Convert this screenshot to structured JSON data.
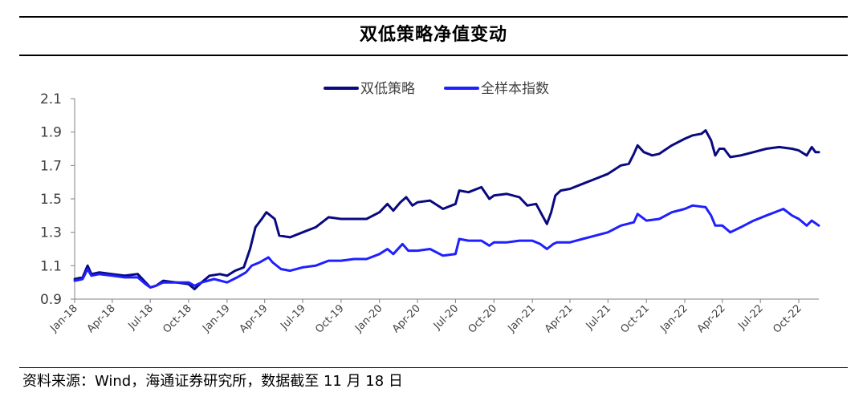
{
  "header": {
    "title": "双低策略净值变动"
  },
  "footer": {
    "source": "资料来源：Wind，海通证券研究所，数据截至 11 月 18 日"
  },
  "colors": {
    "strategy": "#0a0a80",
    "index": "#1f1fff",
    "axis": "#808080",
    "text": "#404040"
  },
  "chart_data": {
    "type": "line",
    "title": "双低策略净值变动",
    "xlabel": "",
    "ylabel": "",
    "ylim": [
      0.9,
      2.1
    ],
    "yticks": [
      0.9,
      1.1,
      1.3,
      1.5,
      1.7,
      1.9,
      2.1
    ],
    "ytick_labels": [
      "0.9",
      "1.1",
      "1.3",
      "1.5",
      "1.7",
      "1.9",
      "2.1"
    ],
    "xlim": [
      "2018-01-01",
      "2022-11-18"
    ],
    "xticks": [
      "2018-01-01",
      "2018-04-01",
      "2018-07-01",
      "2018-10-01",
      "2019-01-01",
      "2019-04-01",
      "2019-07-01",
      "2019-10-01",
      "2020-01-01",
      "2020-04-01",
      "2020-07-01",
      "2020-10-01",
      "2021-01-01",
      "2021-04-01",
      "2021-07-01",
      "2021-10-01",
      "2022-01-01",
      "2022-04-01",
      "2022-07-01",
      "2022-10-01"
    ],
    "xtick_labels": [
      "Jan-18",
      "Apr-18",
      "Jul-18",
      "Oct-18",
      "Jan-19",
      "Apr-19",
      "Jul-19",
      "Oct-19",
      "Jan-20",
      "Apr-20",
      "Jul-20",
      "Oct-20",
      "Jan-21",
      "Apr-21",
      "Jul-21",
      "Oct-21",
      "Jan-22",
      "Apr-22",
      "Jul-22",
      "Oct-22"
    ],
    "legend_position": "top-center",
    "grid": false,
    "series": [
      {
        "name": "双低策略",
        "color": "#0a0a80",
        "points": [
          [
            "2018-01-01",
            1.02
          ],
          [
            "2018-01-20",
            1.03
          ],
          [
            "2018-02-01",
            1.1
          ],
          [
            "2018-02-10",
            1.05
          ],
          [
            "2018-03-01",
            1.06
          ],
          [
            "2018-04-01",
            1.05
          ],
          [
            "2018-05-01",
            1.04
          ],
          [
            "2018-06-01",
            1.05
          ],
          [
            "2018-06-20",
            1.0
          ],
          [
            "2018-07-01",
            0.97
          ],
          [
            "2018-07-15",
            0.98
          ],
          [
            "2018-08-01",
            1.01
          ],
          [
            "2018-09-01",
            1.0
          ],
          [
            "2018-10-01",
            0.99
          ],
          [
            "2018-10-15",
            0.96
          ],
          [
            "2018-11-01",
            1.0
          ],
          [
            "2018-11-20",
            1.04
          ],
          [
            "2018-12-15",
            1.05
          ],
          [
            "2019-01-01",
            1.04
          ],
          [
            "2019-01-20",
            1.07
          ],
          [
            "2019-02-10",
            1.09
          ],
          [
            "2019-02-25",
            1.2
          ],
          [
            "2019-03-10",
            1.33
          ],
          [
            "2019-03-25",
            1.38
          ],
          [
            "2019-04-05",
            1.42
          ],
          [
            "2019-04-15",
            1.4
          ],
          [
            "2019-04-25",
            1.38
          ],
          [
            "2019-05-06",
            1.28
          ],
          [
            "2019-06-01",
            1.27
          ],
          [
            "2019-07-01",
            1.3
          ],
          [
            "2019-08-01",
            1.33
          ],
          [
            "2019-09-01",
            1.39
          ],
          [
            "2019-10-01",
            1.38
          ],
          [
            "2019-11-01",
            1.38
          ],
          [
            "2019-12-01",
            1.38
          ],
          [
            "2020-01-01",
            1.42
          ],
          [
            "2020-01-20",
            1.47
          ],
          [
            "2020-02-03",
            1.43
          ],
          [
            "2020-02-20",
            1.48
          ],
          [
            "2020-03-05",
            1.51
          ],
          [
            "2020-03-20",
            1.46
          ],
          [
            "2020-04-01",
            1.48
          ],
          [
            "2020-05-01",
            1.49
          ],
          [
            "2020-06-01",
            1.44
          ],
          [
            "2020-07-01",
            1.47
          ],
          [
            "2020-07-10",
            1.55
          ],
          [
            "2020-08-01",
            1.54
          ],
          [
            "2020-09-01",
            1.57
          ],
          [
            "2020-09-20",
            1.5
          ],
          [
            "2020-10-01",
            1.52
          ],
          [
            "2020-11-01",
            1.53
          ],
          [
            "2020-12-01",
            1.51
          ],
          [
            "2020-12-20",
            1.46
          ],
          [
            "2021-01-10",
            1.47
          ],
          [
            "2021-01-25",
            1.4
          ],
          [
            "2021-02-05",
            1.35
          ],
          [
            "2021-02-15",
            1.42
          ],
          [
            "2021-02-25",
            1.52
          ],
          [
            "2021-03-10",
            1.55
          ],
          [
            "2021-04-01",
            1.56
          ],
          [
            "2021-05-01",
            1.59
          ],
          [
            "2021-06-01",
            1.62
          ],
          [
            "2021-07-01",
            1.65
          ],
          [
            "2021-08-01",
            1.7
          ],
          [
            "2021-08-20",
            1.71
          ],
          [
            "2021-09-01",
            1.77
          ],
          [
            "2021-09-10",
            1.82
          ],
          [
            "2021-09-25",
            1.78
          ],
          [
            "2021-10-15",
            1.76
          ],
          [
            "2021-11-01",
            1.77
          ],
          [
            "2021-12-01",
            1.82
          ],
          [
            "2022-01-01",
            1.86
          ],
          [
            "2022-01-20",
            1.88
          ],
          [
            "2022-02-10",
            1.89
          ],
          [
            "2022-02-20",
            1.91
          ],
          [
            "2022-03-05",
            1.85
          ],
          [
            "2022-03-15",
            1.76
          ],
          [
            "2022-03-25",
            1.8
          ],
          [
            "2022-04-05",
            1.8
          ],
          [
            "2022-04-20",
            1.75
          ],
          [
            "2022-05-15",
            1.76
          ],
          [
            "2022-06-15",
            1.78
          ],
          [
            "2022-07-15",
            1.8
          ],
          [
            "2022-08-15",
            1.81
          ],
          [
            "2022-09-15",
            1.8
          ],
          [
            "2022-10-01",
            1.79
          ],
          [
            "2022-10-20",
            1.76
          ],
          [
            "2022-11-01",
            1.81
          ],
          [
            "2022-11-10",
            1.78
          ],
          [
            "2022-11-18",
            1.78
          ]
        ]
      },
      {
        "name": "全样本指数",
        "color": "#1f1fff",
        "points": [
          [
            "2018-01-01",
            1.01
          ],
          [
            "2018-01-20",
            1.02
          ],
          [
            "2018-02-01",
            1.08
          ],
          [
            "2018-02-10",
            1.04
          ],
          [
            "2018-03-01",
            1.05
          ],
          [
            "2018-04-01",
            1.04
          ],
          [
            "2018-05-01",
            1.03
          ],
          [
            "2018-06-01",
            1.03
          ],
          [
            "2018-06-20",
            0.99
          ],
          [
            "2018-07-01",
            0.97
          ],
          [
            "2018-07-15",
            0.98
          ],
          [
            "2018-08-01",
            1.0
          ],
          [
            "2018-09-01",
            1.0
          ],
          [
            "2018-10-01",
            1.0
          ],
          [
            "2018-10-15",
            0.98
          ],
          [
            "2018-11-01",
            1.0
          ],
          [
            "2018-12-01",
            1.02
          ],
          [
            "2019-01-01",
            1.0
          ],
          [
            "2019-01-25",
            1.03
          ],
          [
            "2019-02-15",
            1.06
          ],
          [
            "2019-03-01",
            1.1
          ],
          [
            "2019-03-20",
            1.12
          ],
          [
            "2019-04-10",
            1.15
          ],
          [
            "2019-04-20",
            1.12
          ],
          [
            "2019-05-10",
            1.08
          ],
          [
            "2019-06-01",
            1.07
          ],
          [
            "2019-07-01",
            1.09
          ],
          [
            "2019-08-01",
            1.1
          ],
          [
            "2019-09-01",
            1.13
          ],
          [
            "2019-10-01",
            1.13
          ],
          [
            "2019-11-01",
            1.14
          ],
          [
            "2019-12-01",
            1.14
          ],
          [
            "2020-01-01",
            1.17
          ],
          [
            "2020-01-20",
            1.2
          ],
          [
            "2020-02-03",
            1.17
          ],
          [
            "2020-02-25",
            1.23
          ],
          [
            "2020-03-10",
            1.19
          ],
          [
            "2020-04-01",
            1.19
          ],
          [
            "2020-05-01",
            1.2
          ],
          [
            "2020-06-01",
            1.16
          ],
          [
            "2020-07-01",
            1.17
          ],
          [
            "2020-07-10",
            1.26
          ],
          [
            "2020-08-01",
            1.25
          ],
          [
            "2020-09-01",
            1.25
          ],
          [
            "2020-09-20",
            1.22
          ],
          [
            "2020-10-01",
            1.24
          ],
          [
            "2020-11-01",
            1.24
          ],
          [
            "2020-12-01",
            1.25
          ],
          [
            "2021-01-01",
            1.25
          ],
          [
            "2021-01-20",
            1.23
          ],
          [
            "2021-02-05",
            1.2
          ],
          [
            "2021-02-20",
            1.23
          ],
          [
            "2021-03-01",
            1.24
          ],
          [
            "2021-04-01",
            1.24
          ],
          [
            "2021-05-01",
            1.26
          ],
          [
            "2021-06-01",
            1.28
          ],
          [
            "2021-07-01",
            1.3
          ],
          [
            "2021-08-01",
            1.34
          ],
          [
            "2021-09-01",
            1.36
          ],
          [
            "2021-09-10",
            1.41
          ],
          [
            "2021-10-01",
            1.37
          ],
          [
            "2021-11-01",
            1.38
          ],
          [
            "2021-12-01",
            1.42
          ],
          [
            "2022-01-01",
            1.44
          ],
          [
            "2022-01-20",
            1.46
          ],
          [
            "2022-02-20",
            1.45
          ],
          [
            "2022-03-05",
            1.4
          ],
          [
            "2022-03-15",
            1.34
          ],
          [
            "2022-04-01",
            1.34
          ],
          [
            "2022-04-20",
            1.3
          ],
          [
            "2022-05-15",
            1.33
          ],
          [
            "2022-06-15",
            1.37
          ],
          [
            "2022-07-15",
            1.4
          ],
          [
            "2022-08-15",
            1.43
          ],
          [
            "2022-08-25",
            1.44
          ],
          [
            "2022-09-15",
            1.4
          ],
          [
            "2022-10-01",
            1.38
          ],
          [
            "2022-10-20",
            1.34
          ],
          [
            "2022-11-01",
            1.37
          ],
          [
            "2022-11-18",
            1.34
          ]
        ]
      }
    ]
  }
}
